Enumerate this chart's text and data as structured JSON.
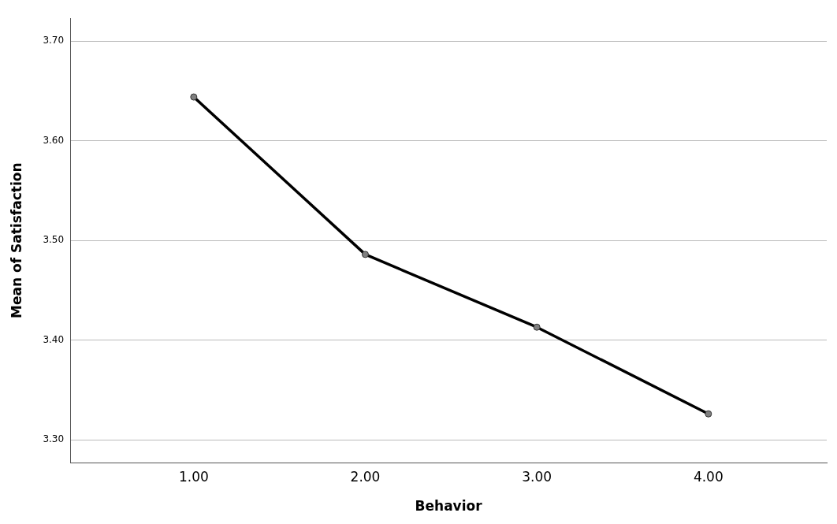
{
  "chart_data": {
    "type": "line",
    "xlabel": "Behavior",
    "ylabel": "Mean of Satisfaction",
    "x": [
      1,
      2,
      3,
      4
    ],
    "series": [
      {
        "color": "#000000",
        "values": [
          3.644,
          3.486,
          3.413,
          3.326
        ]
      }
    ],
    "xlim": [
      0.28,
      4.69
    ],
    "xticks": [
      {
        "value": 1,
        "label": "1.00"
      },
      {
        "value": 2,
        "label": "2.00"
      },
      {
        "value": 3,
        "label": "3.00"
      },
      {
        "value": 4,
        "label": "4.00"
      }
    ],
    "ylim": [
      3.277,
      3.723
    ],
    "yticks": [
      {
        "value": 3.3,
        "label": "3.30"
      },
      {
        "value": 3.4,
        "label": "3.40"
      },
      {
        "value": 3.5,
        "label": "3.50"
      },
      {
        "value": 3.6,
        "label": "3.60"
      },
      {
        "value": 3.7,
        "label": "3.70"
      }
    ],
    "grid": "y",
    "legend": false,
    "marker": "circle",
    "line_style": "solid"
  }
}
